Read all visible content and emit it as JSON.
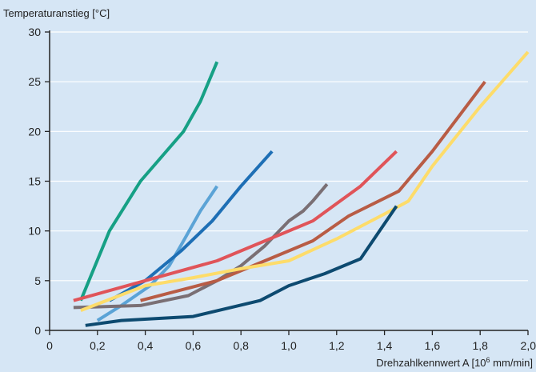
{
  "chart_data": {
    "type": "line",
    "title": "",
    "ylabel": "Temperaturanstieg [°C]",
    "xlabel_prefix": "Drehzahlkennwert A [10",
    "xlabel_sup": "6",
    "xlabel_suffix": " mm/min]",
    "xlim": [
      0,
      2.0
    ],
    "ylim": [
      0,
      30
    ],
    "x_ticks": [
      0,
      0.2,
      0.4,
      0.6,
      0.8,
      1.0,
      1.2,
      1.4,
      1.6,
      1.8,
      2.0
    ],
    "x_tick_labels": [
      "0",
      "0,2",
      "0,4",
      "0,6",
      "0,8",
      "1,0",
      "1,2",
      "1,4",
      "1,6",
      "1,8",
      "2,0"
    ],
    "y_ticks": [
      0,
      5,
      10,
      15,
      20,
      25,
      30
    ],
    "y_tick_labels": [
      "0",
      "5",
      "10",
      "15",
      "20",
      "25",
      "30"
    ],
    "grid": "horizontal",
    "legend": "none",
    "background": "#d6e6f5",
    "series": [
      {
        "color": "#16a085",
        "points": [
          [
            0.13,
            3.0
          ],
          [
            0.25,
            10.0
          ],
          [
            0.38,
            15.0
          ],
          [
            0.56,
            20.0
          ],
          [
            0.63,
            23.0
          ],
          [
            0.7,
            27.0
          ]
        ]
      },
      {
        "color": "#5ba3d6",
        "points": [
          [
            0.2,
            1.0
          ],
          [
            0.3,
            2.5
          ],
          [
            0.42,
            4.5
          ],
          [
            0.5,
            6.5
          ],
          [
            0.56,
            9.0
          ],
          [
            0.63,
            12.0
          ],
          [
            0.7,
            14.5
          ]
        ]
      },
      {
        "color": "#1e6fb5",
        "points": [
          [
            0.25,
            3.0
          ],
          [
            0.4,
            5.0
          ],
          [
            0.55,
            8.0
          ],
          [
            0.68,
            11.0
          ],
          [
            0.8,
            14.5
          ],
          [
            0.93,
            18.0
          ]
        ]
      },
      {
        "color": "#7a6f74",
        "points": [
          [
            0.1,
            2.3
          ],
          [
            0.38,
            2.5
          ],
          [
            0.58,
            3.5
          ],
          [
            0.7,
            5.0
          ],
          [
            0.8,
            6.5
          ],
          [
            0.9,
            8.5
          ],
          [
            1.0,
            11.0
          ],
          [
            1.06,
            12.0
          ],
          [
            1.1,
            13.0
          ],
          [
            1.16,
            14.7
          ]
        ]
      },
      {
        "color": "#e05459",
        "points": [
          [
            0.1,
            3.0
          ],
          [
            0.4,
            5.0
          ],
          [
            0.7,
            7.0
          ],
          [
            0.9,
            9.0
          ],
          [
            1.1,
            11.0
          ],
          [
            1.3,
            14.5
          ],
          [
            1.45,
            18.0
          ]
        ]
      },
      {
        "color": "#b85c45",
        "points": [
          [
            0.38,
            3.0
          ],
          [
            0.7,
            5.0
          ],
          [
            0.9,
            7.0
          ],
          [
            1.1,
            9.0
          ],
          [
            1.25,
            11.5
          ],
          [
            1.46,
            14.0
          ],
          [
            1.6,
            18.0
          ],
          [
            1.82,
            25.0
          ]
        ]
      },
      {
        "color": "#fddc6a",
        "points": [
          [
            0.13,
            2.0
          ],
          [
            0.4,
            4.5
          ],
          [
            0.6,
            5.3
          ],
          [
            0.8,
            6.2
          ],
          [
            1.0,
            7.0
          ],
          [
            1.2,
            9.2
          ],
          [
            1.4,
            11.7
          ],
          [
            1.5,
            13.0
          ],
          [
            1.6,
            16.5
          ],
          [
            1.8,
            22.5
          ],
          [
            2.0,
            28.0
          ]
        ]
      },
      {
        "color": "#0d4a70",
        "points": [
          [
            0.15,
            0.5
          ],
          [
            0.3,
            1.0
          ],
          [
            0.6,
            1.4
          ],
          [
            0.88,
            3.0
          ],
          [
            1.0,
            4.5
          ],
          [
            1.15,
            5.7
          ],
          [
            1.3,
            7.2
          ],
          [
            1.45,
            12.5
          ]
        ]
      }
    ]
  }
}
